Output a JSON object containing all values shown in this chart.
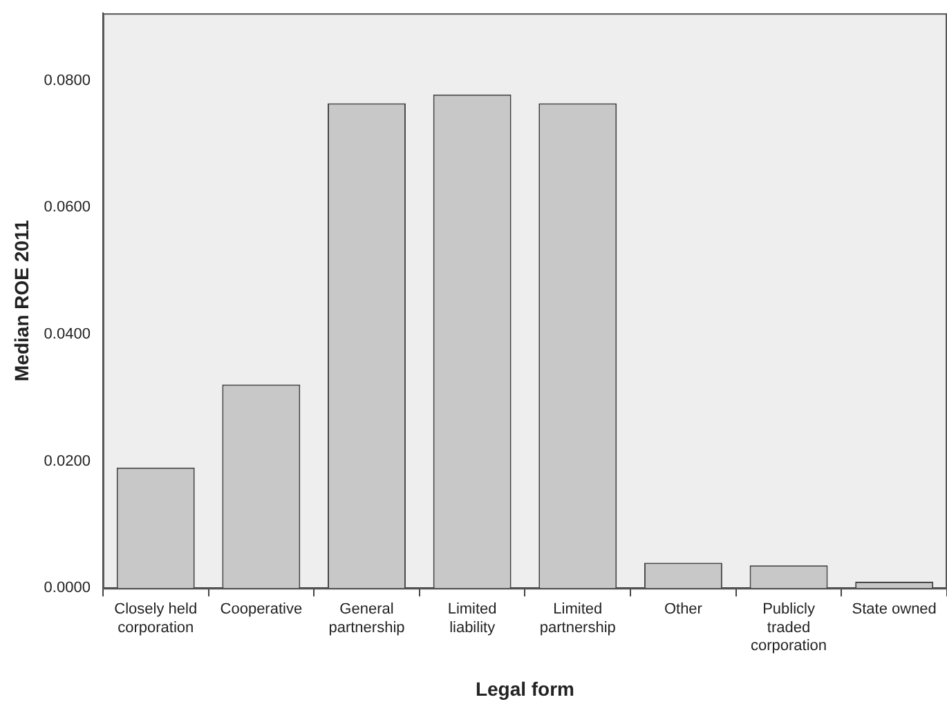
{
  "chart_data": {
    "type": "bar",
    "xlabel": "Legal form",
    "ylabel": "Median ROE 2011",
    "categories": [
      "Closely held corporation",
      "Cooperative",
      "General partnership",
      "Limited liability",
      "Limited partnership",
      "Other",
      "Publicly traded corporation",
      "State owned"
    ],
    "values": [
      0.019,
      0.0321,
      0.0764,
      0.0778,
      0.0764,
      0.004,
      0.0036,
      0.001
    ],
    "color": "#c8c8c8",
    "ylim": [
      0,
      0.0906
    ],
    "yticks": [
      {
        "value": 0,
        "label": "0.0000"
      },
      {
        "value": 0.02,
        "label": "0.0200"
      },
      {
        "value": 0.04,
        "label": "0.0400"
      },
      {
        "value": 0.06,
        "label": "0.0600"
      },
      {
        "value": 0.08,
        "label": "0.0800"
      }
    ],
    "grid": false,
    "legend": false
  }
}
